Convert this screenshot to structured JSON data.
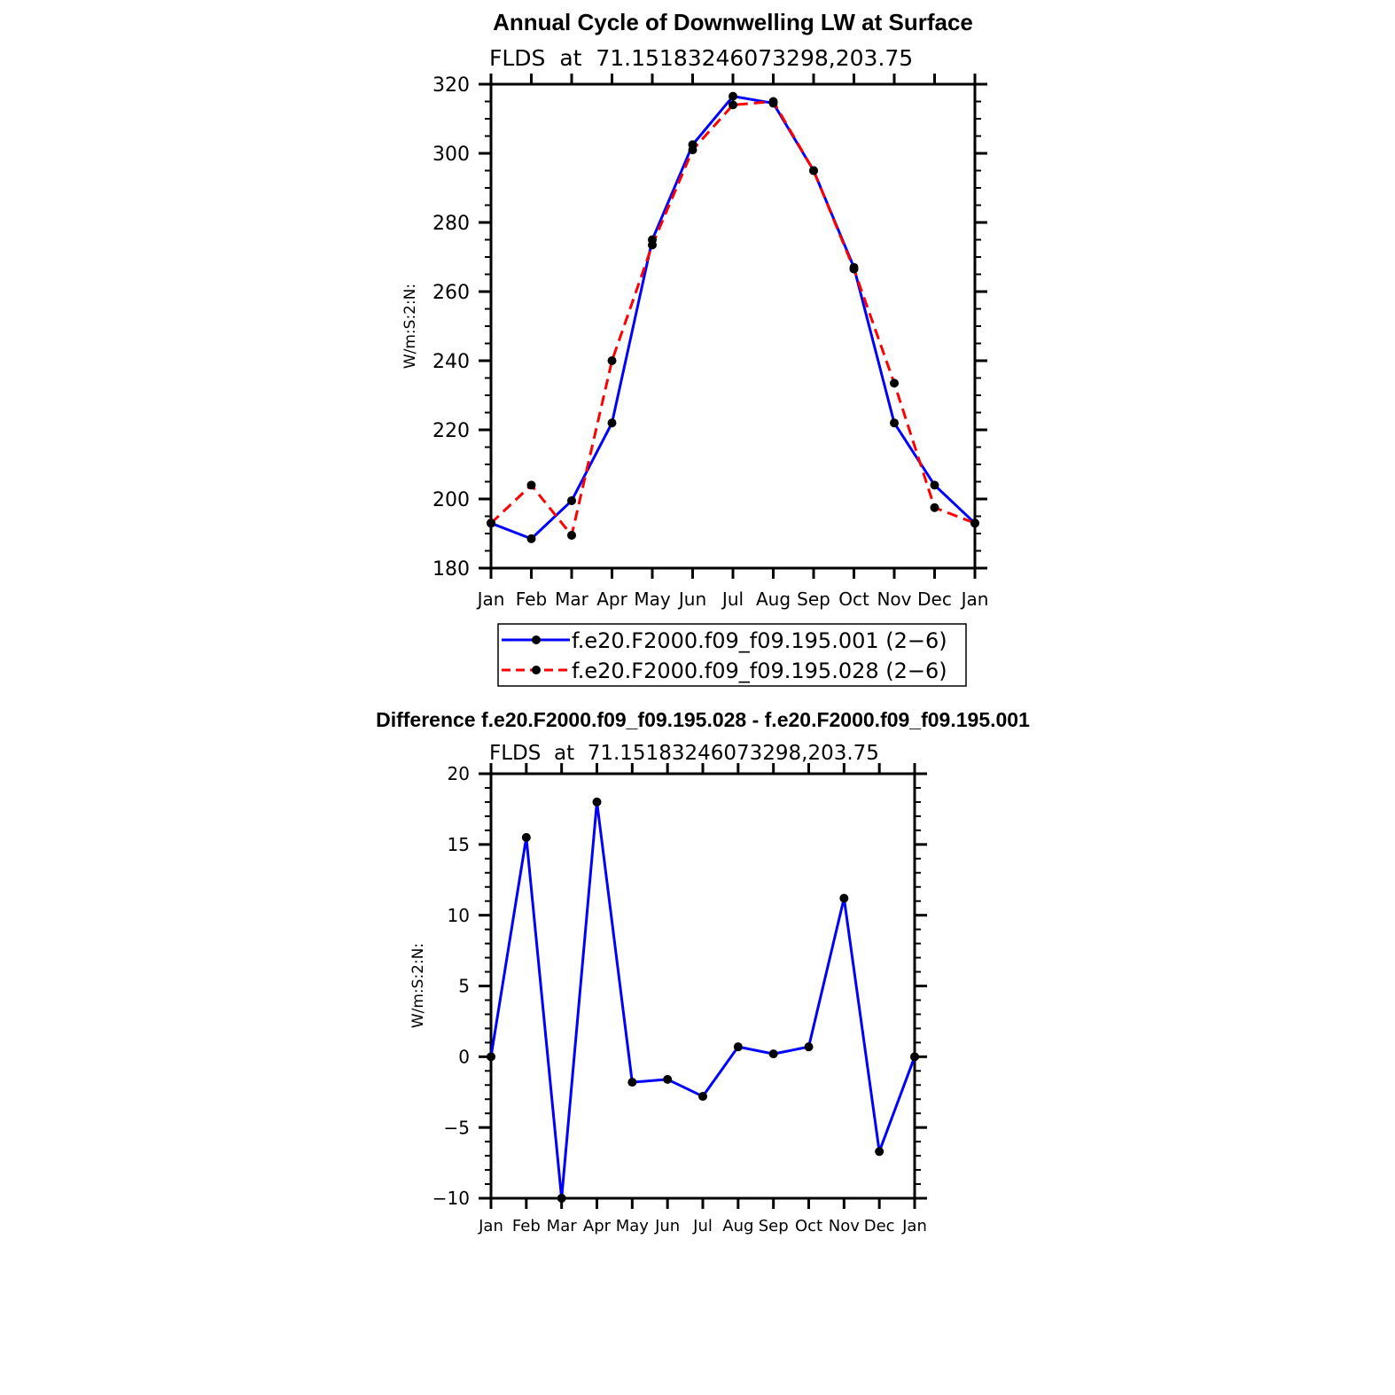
{
  "colors": {
    "series_1": "#0000ff",
    "series_2": "#ff0000",
    "marker": "#000000",
    "axes": "#000000"
  },
  "chart_data": [
    {
      "type": "line",
      "title": "Annual Cycle of Downwelling LW at Surface",
      "subtitle": "FLDS  at  71.15183246073298,203.75",
      "ylabel": "W/m:S:2:N:",
      "xlabel": "",
      "categories": [
        "Jan",
        "Feb",
        "Mar",
        "Apr",
        "May",
        "Jun",
        "Jul",
        "Aug",
        "Sep",
        "Oct",
        "Nov",
        "Dec",
        "Jan"
      ],
      "ylim": [
        180,
        320
      ],
      "yticks": [
        "180",
        "200",
        "220",
        "240",
        "260",
        "280",
        "300",
        "320"
      ],
      "legend_position": "bottom",
      "series": [
        {
          "name": "f.e20.F2000.f09_f09.195.001 (2−6)",
          "color": "#0000ff",
          "dash": "solid",
          "values": [
            193,
            188.5,
            199.5,
            222,
            275,
            302.5,
            316.5,
            314.5,
            295,
            267,
            222,
            204,
            193
          ]
        },
        {
          "name": "f.e20.F2000.f09_f09.195.028 (2−6)",
          "color": "#ff0000",
          "dash": "dashed",
          "values": [
            193,
            204,
            189.5,
            240,
            273.5,
            301,
            314,
            315,
            295,
            266.5,
            233.5,
            197.5,
            193
          ]
        }
      ]
    },
    {
      "type": "line",
      "title": "Difference f.e20.F2000.f09_f09.195.028 - f.e20.F2000.f09_f09.195.001",
      "subtitle": "FLDS  at  71.15183246073298,203.75",
      "ylabel": "W/m:S:2:N:",
      "xlabel": "",
      "categories": [
        "Jan",
        "Feb",
        "Mar",
        "Apr",
        "May",
        "Jun",
        "Jul",
        "Aug",
        "Sep",
        "Oct",
        "Nov",
        "Dec",
        "Jan"
      ],
      "ylim": [
        -10,
        20
      ],
      "yticks": [
        "−10",
        "−5",
        "0",
        "5",
        "10",
        "15",
        "20"
      ],
      "series": [
        {
          "color": "#0000ff",
          "dash": "solid",
          "values": [
            0,
            15.5,
            -10,
            18,
            -1.8,
            -1.6,
            -2.8,
            0.7,
            0.2,
            0.7,
            11.2,
            -6.7,
            0
          ]
        }
      ]
    }
  ]
}
